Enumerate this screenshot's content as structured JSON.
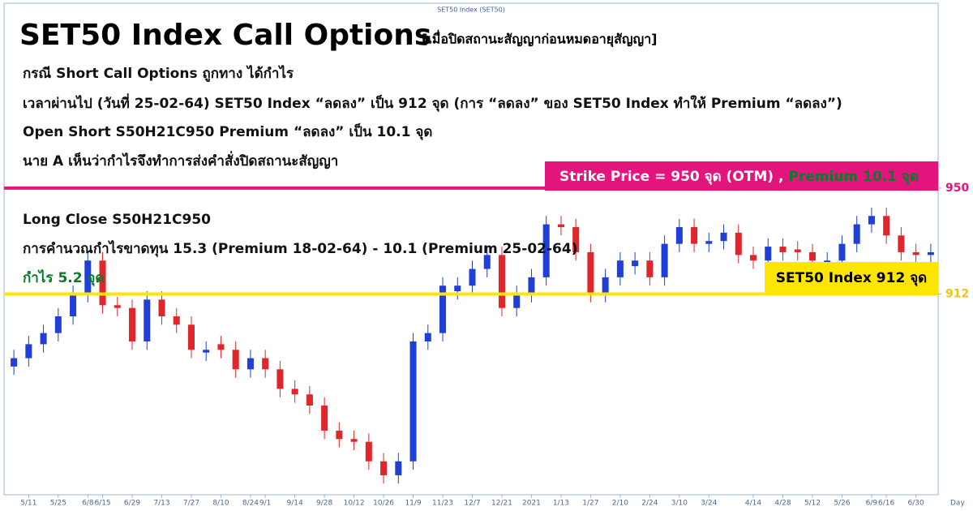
{
  "chart_data": {
    "type": "candlestick",
    "source_label": "SET50 Index (SET50)",
    "title": "SET50 Index Call Options",
    "subtitle": "[เมื่อปิดสถานะสัญญาก่อนหมดอายุสัญญา]",
    "text_lines": [
      "กรณี Short Call Options ถูกทาง ได้กำไร",
      "เวลาผ่านไป (วันที่ 25-02-64) SET50 Index “ลดลง” เป็น 912 จุด (การ “ลดลง” ของ SET50 Index ทำให้ Premium “ลดลง”)",
      "Open Short S50H21C950 Premium “ลดลง” เป็น 10.1 จุด",
      "นาย A เห็นว่ากำไรจึงทำการส่งคำสั่งปิดสถานะสัญญา"
    ],
    "strike_label": "Strike Price = 950 จุด (OTM) , ",
    "strike_premium_label": "Premium 10.1 จุด",
    "notes": [
      "Long Close S50H21C950",
      "การคำนวณกำไรขาดทุน 15.3 (Premium 18-02-64) - 10.1 (Premium 25-02-64)"
    ],
    "profit_label": "กำไร 5.2 จุด",
    "index_label": "SET50 Index 912 จุด",
    "x_label": "Day",
    "ylim": [
      840,
      1016
    ],
    "yticks": [
      950,
      912
    ],
    "hlines": [
      {
        "value": 950,
        "color": "#e3147c"
      },
      {
        "value": 912,
        "color": "#ffe600"
      }
    ],
    "tick_label_colors": [
      "#e3147c",
      "#f2c500"
    ],
    "up_color": "#1f3fd6",
    "down_color": "#e0262b",
    "categories": [
      null,
      "5/11",
      null,
      "5/25",
      null,
      "6/8",
      "6/15",
      null,
      "6/29",
      null,
      "7/13",
      null,
      "7/27",
      null,
      "8/10",
      null,
      "8/24",
      "9/1",
      null,
      "9/14",
      null,
      "9/28",
      null,
      "10/12",
      null,
      "10/26",
      null,
      "11/9",
      null,
      "11/23",
      null,
      "12/7",
      null,
      "12/21",
      null,
      "2021",
      null,
      "1/13",
      null,
      "1/27",
      null,
      "2/10",
      null,
      "2/24",
      null,
      "3/10",
      null,
      "3/24",
      null,
      null,
      "4/14",
      null,
      "4/28",
      null,
      "5/12",
      null,
      "5/26",
      null,
      "6/9",
      "6/16",
      null,
      "6/30",
      null
    ],
    "open": [
      886,
      889,
      894,
      898,
      904,
      912,
      924,
      908,
      907,
      895,
      910,
      904,
      901,
      891,
      894,
      892,
      885,
      889,
      885,
      878,
      876,
      872,
      863,
      860,
      859,
      852,
      847,
      852,
      895,
      898,
      913,
      915,
      921,
      926,
      907,
      912,
      918,
      937,
      936,
      927,
      912,
      918,
      922,
      924,
      918,
      930,
      936,
      930,
      931,
      934,
      926,
      924,
      929,
      928,
      927,
      923,
      924,
      930,
      937,
      940,
      933,
      927,
      926
    ],
    "high": [
      892,
      897,
      901,
      907,
      915,
      927,
      927,
      911,
      910,
      913,
      913,
      907,
      904,
      895,
      897,
      895,
      892,
      892,
      888,
      881,
      879,
      875,
      866,
      863,
      862,
      855,
      855,
      898,
      901,
      918,
      918,
      924,
      929,
      929,
      915,
      921,
      940,
      940,
      939,
      930,
      921,
      927,
      927,
      927,
      933,
      939,
      939,
      934,
      937,
      937,
      929,
      932,
      932,
      931,
      930,
      927,
      933,
      940,
      943,
      943,
      936,
      930,
      930
    ],
    "low": [
      883,
      886,
      891,
      895,
      901,
      909,
      905,
      904,
      892,
      892,
      901,
      898,
      889,
      888,
      889,
      882,
      882,
      882,
      875,
      873,
      869,
      860,
      857,
      856,
      849,
      844,
      844,
      849,
      892,
      895,
      910,
      912,
      918,
      904,
      904,
      909,
      915,
      933,
      924,
      909,
      909,
      915,
      919,
      915,
      915,
      927,
      927,
      927,
      928,
      923,
      921,
      921,
      924,
      924,
      921,
      920,
      921,
      927,
      934,
      930,
      924,
      923,
      923
    ],
    "close": [
      889,
      894,
      898,
      904,
      912,
      924,
      908,
      907,
      895,
      910,
      904,
      901,
      892,
      892,
      892,
      885,
      889,
      885,
      878,
      876,
      872,
      863,
      860,
      859,
      852,
      847,
      852,
      895,
      898,
      915,
      915,
      921,
      926,
      907,
      912,
      918,
      937,
      936,
      927,
      912,
      918,
      924,
      924,
      918,
      930,
      936,
      930,
      931,
      934,
      926,
      924,
      929,
      927,
      927,
      924,
      924,
      930,
      937,
      940,
      933,
      927,
      926,
      927
    ]
  }
}
